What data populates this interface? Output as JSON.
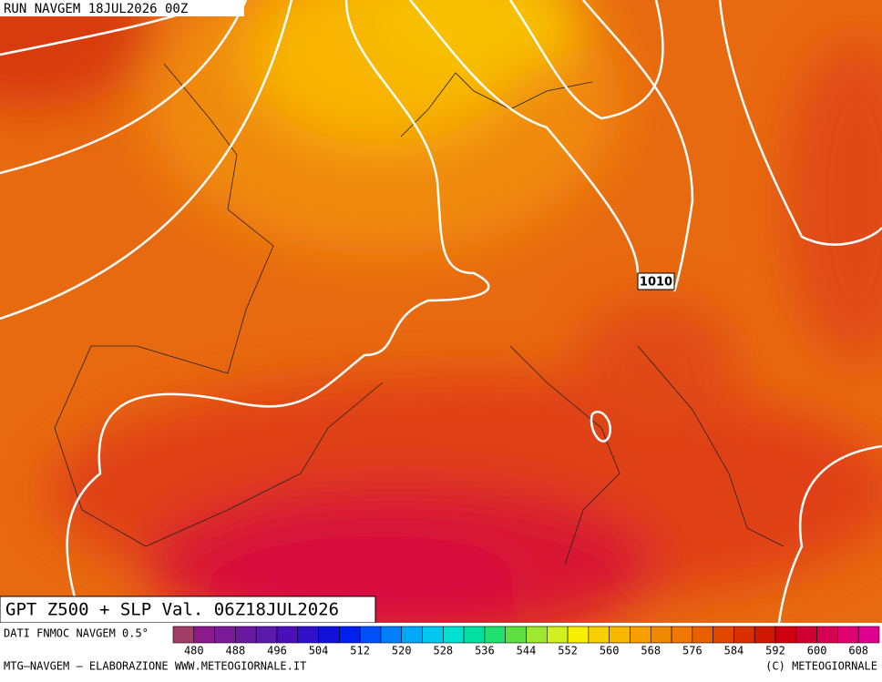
{
  "header": {
    "run": "RUN NAVGEM 18JUL2026 00Z"
  },
  "map": {
    "field_label": "GPT Z500 + SLP Val. 06Z18JUL2026",
    "isobar_label": "1010"
  },
  "legend": {
    "source": "DATI FNMOC NAVGEM 0.5°",
    "ticks": [
      480,
      488,
      496,
      504,
      512,
      520,
      528,
      536,
      544,
      552,
      560,
      568,
      576,
      584,
      592,
      600,
      608
    ],
    "colors": [
      "#a0406a",
      "#8b1a8b",
      "#7a1a96",
      "#6a1aa0",
      "#5a1aaa",
      "#4a10b8",
      "#3010c8",
      "#1010d8",
      "#0020f0",
      "#0050f8",
      "#0080f8",
      "#00a8f8",
      "#00c8f0",
      "#00e0d0",
      "#00e0a0",
      "#20e070",
      "#60e040",
      "#a0e830",
      "#d0f020",
      "#f8f000",
      "#f8d000",
      "#f8b800",
      "#f8a000",
      "#f08800",
      "#f07800",
      "#e86000",
      "#e04800",
      "#d83000",
      "#d01800",
      "#d00010",
      "#d00030",
      "#d80050",
      "#e00070",
      "#e00090"
    ]
  },
  "footer": {
    "left": "MTG–NAVGEM – ELABORAZIONE WWW.METEOGIORNALE.IT",
    "right": "(C) METEOGIORNALE"
  }
}
